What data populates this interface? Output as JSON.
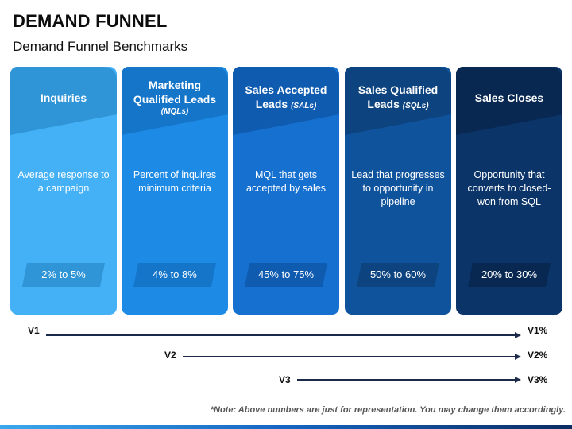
{
  "title": "DEMAND FUNNEL",
  "subtitle": "Demand Funnel Benchmarks",
  "colors": {
    "card1": "#44b0f5",
    "card1_head": "#2f95d6",
    "card2": "#1d8ae6",
    "card2_head": "#1475c9",
    "card3": "#1670d0",
    "card3_head": "#0f5bb0",
    "card4": "#10539d",
    "card4_head": "#0d447f",
    "card5": "#0b3469",
    "card5_head": "#082852"
  },
  "stages": [
    {
      "title": "Inquiries",
      "sub": "",
      "description": "Average response to a campaign",
      "benchmark": "2% to 5%"
    },
    {
      "title": "Marketing Qualified Leads",
      "sub": "(MQLs)",
      "description": "Percent of inquires minimum criteria",
      "benchmark": "4% to 8%"
    },
    {
      "title": "Sales Accepted Leads",
      "sub": "(SALs)",
      "description": "MQL that gets accepted by sales",
      "benchmark": "45% to 75%"
    },
    {
      "title": "Sales Qualified Leads",
      "sub": "(SQLs)",
      "description": "Lead that progresses to opportunity in pipeline",
      "benchmark": "50% to 60%"
    },
    {
      "title": "Sales Closes",
      "sub": "",
      "description": "Opportunity that converts to closed-won from SQL",
      "benchmark": "20% to 30%"
    }
  ],
  "rows": [
    {
      "start": "V1",
      "end": "V1%"
    },
    {
      "start": "V2",
      "end": "V2%"
    },
    {
      "start": "V3",
      "end": "V3%"
    }
  ],
  "note": "*Note: Above numbers are just for representation. You may change them accordingly."
}
